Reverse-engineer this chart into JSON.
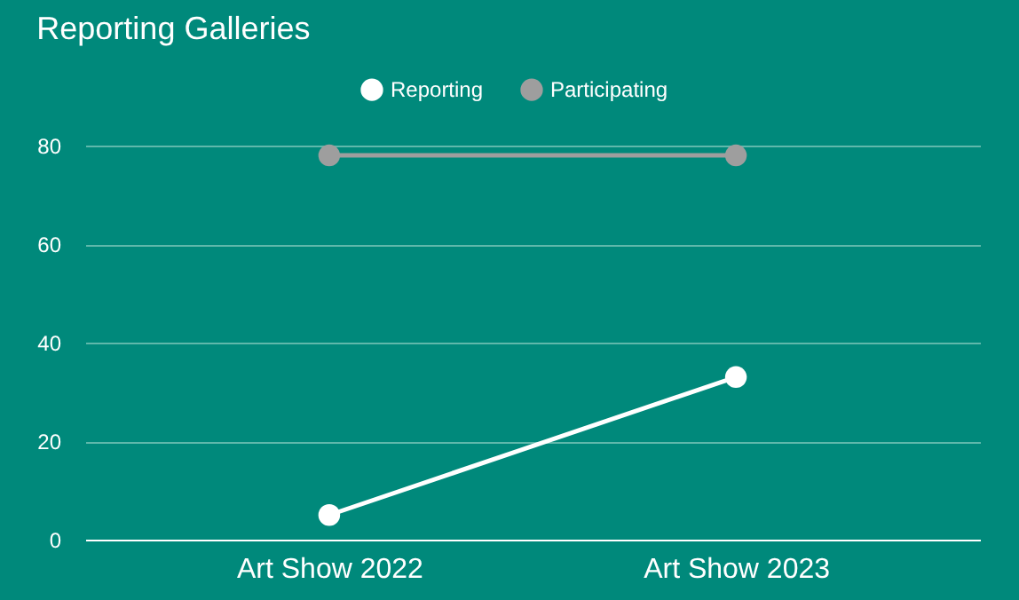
{
  "chart_data": {
    "type": "line",
    "title": "Reporting Galleries",
    "categories": [
      "Art Show 2022",
      "Art Show 2023"
    ],
    "series": [
      {
        "name": "Reporting",
        "color": "#ffffff",
        "values": [
          5,
          33
        ]
      },
      {
        "name": "Participating",
        "color": "#9e9e9e",
        "values": [
          78,
          78
        ]
      }
    ],
    "ylim": [
      0,
      80
    ],
    "yticks": [
      0,
      20,
      40,
      60,
      80
    ],
    "grid": "y",
    "legend": "top",
    "marker": "circle"
  }
}
